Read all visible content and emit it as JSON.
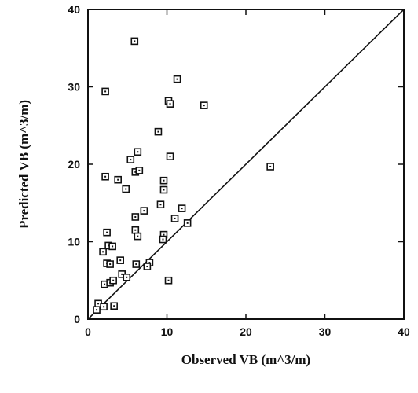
{
  "chart_data": {
    "type": "scatter",
    "xlabel": "Observed VB (m^3/m)",
    "ylabel": "Predicted VB (m^3/m)",
    "xlim": [
      0,
      40
    ],
    "ylim": [
      0,
      40
    ],
    "x_ticks": [
      "0",
      "10",
      "20",
      "30",
      "40"
    ],
    "y_ticks": [
      "0",
      "10",
      "20",
      "30",
      "40"
    ],
    "grid": false,
    "marker": "square",
    "reference_line": {
      "from": [
        0,
        0
      ],
      "to": [
        40,
        40
      ]
    },
    "series": [
      {
        "points": [
          [
            5.9,
            35.9
          ],
          [
            2.2,
            29.4
          ],
          [
            11.3,
            31.0
          ],
          [
            10.2,
            28.2
          ],
          [
            10.4,
            27.8
          ],
          [
            14.7,
            27.6
          ],
          [
            8.9,
            24.2
          ],
          [
            6.3,
            21.6
          ],
          [
            10.4,
            21.0
          ],
          [
            5.4,
            20.6
          ],
          [
            23.1,
            19.7
          ],
          [
            6.0,
            19.0
          ],
          [
            6.5,
            19.2
          ],
          [
            2.2,
            18.4
          ],
          [
            3.8,
            18.0
          ],
          [
            9.6,
            17.9
          ],
          [
            9.6,
            16.7
          ],
          [
            4.8,
            16.8
          ],
          [
            9.2,
            14.8
          ],
          [
            7.1,
            14.0
          ],
          [
            11.9,
            14.3
          ],
          [
            6.0,
            13.2
          ],
          [
            11.0,
            13.0
          ],
          [
            12.6,
            12.4
          ],
          [
            2.4,
            11.2
          ],
          [
            6.0,
            11.5
          ],
          [
            6.3,
            10.7
          ],
          [
            9.6,
            10.9
          ],
          [
            9.5,
            10.3
          ],
          [
            1.9,
            8.7
          ],
          [
            2.6,
            9.5
          ],
          [
            3.1,
            9.4
          ],
          [
            4.1,
            7.6
          ],
          [
            2.4,
            7.2
          ],
          [
            2.8,
            7.1
          ],
          [
            6.1,
            7.1
          ],
          [
            7.8,
            7.3
          ],
          [
            7.5,
            6.8
          ],
          [
            4.3,
            5.8
          ],
          [
            4.9,
            5.4
          ],
          [
            2.1,
            4.5
          ],
          [
            2.8,
            4.7
          ],
          [
            3.2,
            5.0
          ],
          [
            10.2,
            5.0
          ],
          [
            1.3,
            2.0
          ],
          [
            1.1,
            1.2
          ],
          [
            2.0,
            1.6
          ],
          [
            3.3,
            1.7
          ]
        ]
      }
    ]
  }
}
